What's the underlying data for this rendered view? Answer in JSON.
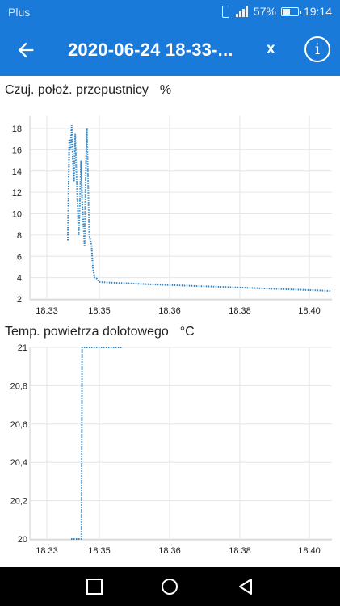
{
  "status_bar": {
    "carrier": "Plus",
    "battery": "57%",
    "time": "19:14",
    "icons": [
      "vibrate-icon",
      "signal-icon",
      "battery-icon"
    ]
  },
  "app_bar": {
    "title": "2020-06-24 18-33-...",
    "close_label": "x",
    "info_label": "i",
    "icons": [
      "back-arrow-icon",
      "info-icon"
    ]
  },
  "colors": {
    "accent": "#1a7ad9",
    "line": "#2f86c8",
    "grid": "#e6e6e6"
  },
  "chart_data": [
    {
      "type": "line",
      "title": "Czuj. położ. przepustnicy",
      "unit": "%",
      "x_ticks": [
        "18:33",
        "18:35",
        "18:36",
        "18:38",
        "18:40"
      ],
      "y_ticks": [
        "2",
        "4",
        "6",
        "8",
        "10",
        "12",
        "14",
        "16",
        "18"
      ],
      "ylim": [
        2,
        18.5
      ],
      "series": [
        {
          "values": [
            [
              18.343,
              7.5
            ],
            [
              18.348,
              17
            ],
            [
              18.352,
              16
            ],
            [
              18.356,
              18.3
            ],
            [
              18.36,
              15
            ],
            [
              18.364,
              13
            ],
            [
              18.368,
              17.5
            ],
            [
              18.372,
              14
            ],
            [
              18.376,
              11
            ],
            [
              18.38,
              8
            ],
            [
              18.384,
              11
            ],
            [
              18.388,
              15
            ],
            [
              18.392,
              11
            ],
            [
              18.396,
              9
            ],
            [
              18.4,
              7
            ],
            [
              18.404,
              14
            ],
            [
              18.408,
              18
            ],
            [
              18.412,
              13
            ],
            [
              18.416,
              8
            ],
            [
              18.42,
              7.5
            ],
            [
              18.424,
              7
            ],
            [
              18.428,
              5
            ],
            [
              18.434,
              4
            ],
            [
              18.442,
              3.9
            ],
            [
              18.45,
              3.6
            ],
            [
              18.48,
              3.55
            ],
            [
              18.52,
              3.5
            ],
            [
              18.6,
              3.4
            ],
            [
              18.7,
              3.3
            ],
            [
              18.8,
              3.2
            ],
            [
              18.9,
              3.1
            ],
            [
              19.0,
              3.0
            ],
            [
              19.1,
              2.9
            ],
            [
              19.2,
              2.8
            ],
            [
              19.24,
              2.75
            ]
          ]
        }
      ]
    },
    {
      "type": "line",
      "title": "Temp. powietrza dolotowego",
      "unit": "°C",
      "x_ticks": [
        "18:33",
        "18:35",
        "18:36",
        "18:38",
        "18:40"
      ],
      "y_ticks": [
        "20",
        "20,2",
        "20,4",
        "20,6",
        "20,8",
        "21"
      ],
      "ylim": [
        20,
        21
      ],
      "series": [
        {
          "values": [
            [
              18.38,
              20
            ],
            [
              18.41,
              20
            ],
            [
              18.412,
              21
            ],
            [
              18.53,
              21
            ]
          ]
        }
      ]
    }
  ],
  "nav_bar": {
    "icons": [
      "recent-apps-icon",
      "home-icon",
      "back-icon"
    ]
  }
}
